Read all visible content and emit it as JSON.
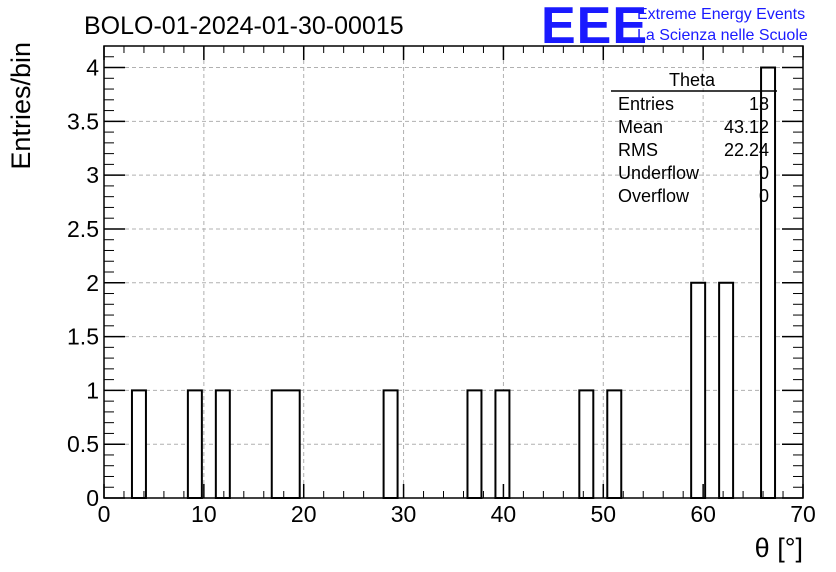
{
  "chart_data": {
    "type": "bar",
    "title": "BOLO-01-2024-01-30-00015",
    "xlabel": "θ [°]",
    "ylabel": "Entries/bin",
    "xlim": [
      0,
      70
    ],
    "ylim": [
      0,
      4.2
    ],
    "grid": true,
    "bin_width": 1.4,
    "bins": [
      {
        "x0": 2.8,
        "x1": 4.2,
        "value": 1
      },
      {
        "x0": 8.4,
        "x1": 9.8,
        "value": 1
      },
      {
        "x0": 11.2,
        "x1": 12.6,
        "value": 1
      },
      {
        "x0": 16.8,
        "x1": 19.6,
        "value": 1
      },
      {
        "x0": 28.0,
        "x1": 29.4,
        "value": 1
      },
      {
        "x0": 36.4,
        "x1": 37.8,
        "value": 1
      },
      {
        "x0": 39.2,
        "x1": 40.6,
        "value": 1
      },
      {
        "x0": 47.6,
        "x1": 49.0,
        "value": 1
      },
      {
        "x0": 50.4,
        "x1": 51.8,
        "value": 1
      },
      {
        "x0": 58.8,
        "x1": 60.2,
        "value": 2
      },
      {
        "x0": 61.6,
        "x1": 63.0,
        "value": 2
      },
      {
        "x0": 65.8,
        "x1": 67.2,
        "value": 4
      }
    ],
    "x_ticks": [
      "0",
      "10",
      "20",
      "30",
      "40",
      "50",
      "60",
      "70"
    ],
    "y_ticks": [
      "0",
      "0.5",
      "1",
      "1.5",
      "2",
      "2.5",
      "3",
      "3.5",
      "4"
    ],
    "stats_box": {
      "title": "Theta",
      "rows": [
        {
          "label": "Entries",
          "value": "18"
        },
        {
          "label": "Mean",
          "value": "43.12"
        },
        {
          "label": "RMS",
          "value": "22.24"
        },
        {
          "label": "Underflow",
          "value": "0"
        },
        {
          "label": "Overflow",
          "value": "0"
        }
      ]
    }
  },
  "logo": {
    "letters": "EEE",
    "line1": "Extreme Energy Events",
    "line2": "La Scienza nelle Scuole",
    "color": "#1a1aff"
  }
}
